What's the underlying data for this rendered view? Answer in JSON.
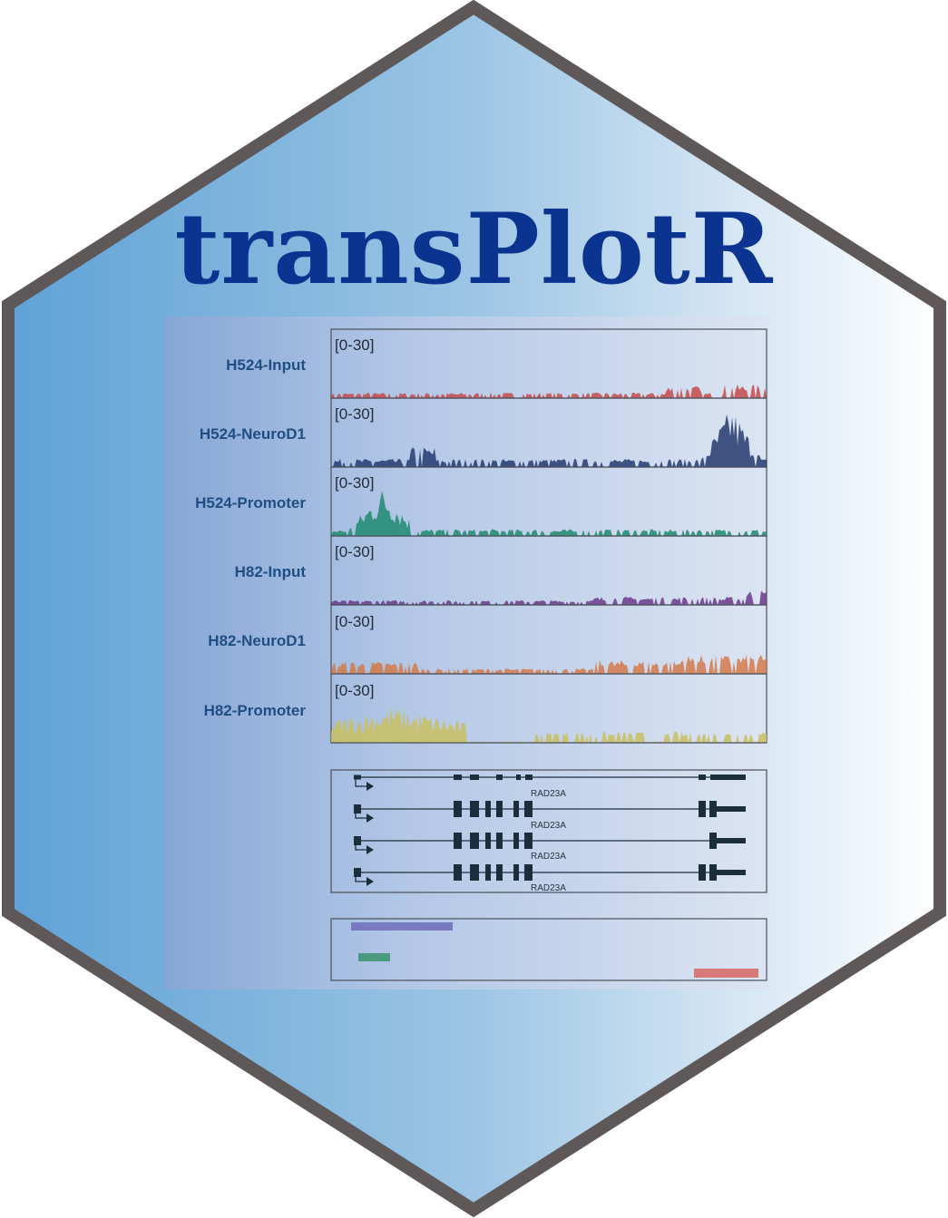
{
  "title": "transPlotR",
  "colors": {
    "hex_border": "#5e5859",
    "title": "#0a3490",
    "label": "#1f4f82",
    "gene_structure": "#1c2e3c"
  },
  "tracks": [
    {
      "name": "H524-Input",
      "range": "[0-30]",
      "color": "#c44a4a"
    },
    {
      "name": "H524-NeuroD1",
      "range": "[0-30]",
      "color": "#243a70"
    },
    {
      "name": "H524-Promoter",
      "range": "[0-30]",
      "color": "#1f8a6f"
    },
    {
      "name": "H82-Input",
      "range": "[0-30]",
      "color": "#6a3a8a"
    },
    {
      "name": "H82-NeuroD1",
      "range": "[0-30]",
      "color": "#d27a4a"
    },
    {
      "name": "H82-Promoter",
      "range": "[0-30]",
      "color": "#c8c060"
    }
  ],
  "gene_track": {
    "transcripts": [
      {
        "label": "RAD23A"
      },
      {
        "label": "RAD23A"
      },
      {
        "label": "RAD23A"
      },
      {
        "label": "RAD23A"
      }
    ]
  },
  "peak_track": {
    "colors": [
      "#7a7ac0",
      "#4a9a80",
      "#d87878"
    ]
  }
}
